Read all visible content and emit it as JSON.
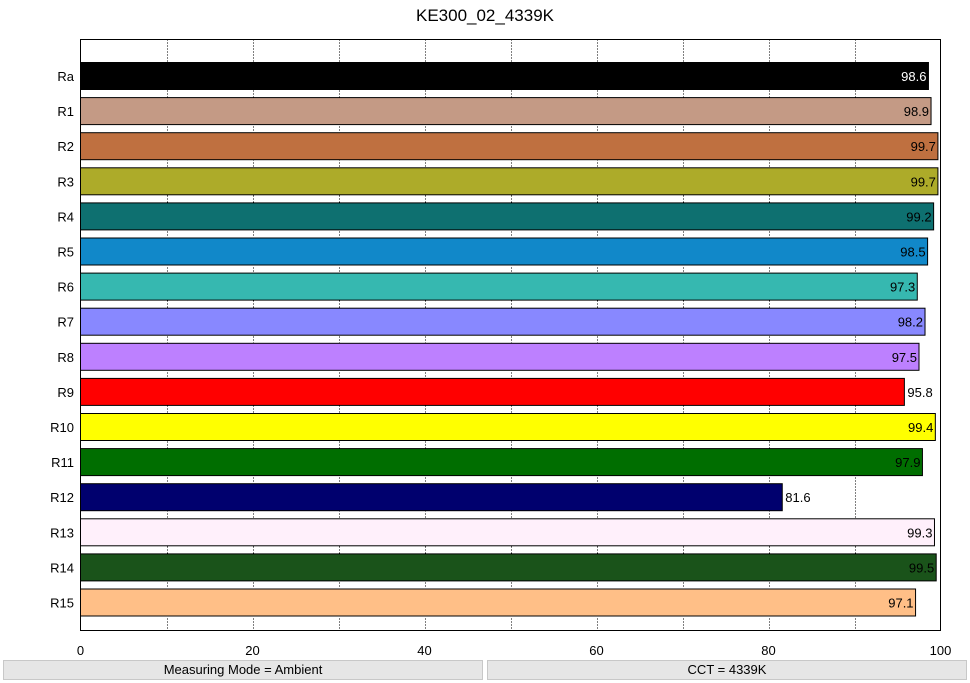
{
  "chart_data": {
    "type": "bar",
    "orientation": "horizontal",
    "title": "KE300_02_4339K",
    "categories": [
      "Ra",
      "R1",
      "R2",
      "R3",
      "R4",
      "R5",
      "R6",
      "R7",
      "R8",
      "R9",
      "R10",
      "R11",
      "R12",
      "R13",
      "R14",
      "R15"
    ],
    "values": [
      98.6,
      98.9,
      99.7,
      99.7,
      99.2,
      98.5,
      97.3,
      98.2,
      97.5,
      95.8,
      99.4,
      97.9,
      81.6,
      99.3,
      99.5,
      97.1
    ],
    "labels": [
      "98.6",
      "98.9",
      "99.7",
      "99.7",
      "99.2",
      "98.5",
      "97.3",
      "98.2",
      "97.5",
      "95.8",
      "99.4",
      "97.9",
      "81.6",
      "99.3",
      "99.5",
      "97.1"
    ],
    "colors": [
      "#000000",
      "#c49a85",
      "#bf7040",
      "#adab29",
      "#0e7070",
      "#1188c9",
      "#36b8b0",
      "#8888ff",
      "#bd80ff",
      "#ff0000",
      "#ffff00",
      "#006e00",
      "#00006e",
      "#fff0fb",
      "#1a531a",
      "#ffbf87"
    ],
    "label_colors": [
      "#ffffff",
      "#000000",
      "#000000",
      "#000000",
      "#000000",
      "#000000",
      "#000000",
      "#000000",
      "#000000",
      "#000000",
      "#000000",
      "#000000",
      "#000000",
      "#000000",
      "#000000",
      "#000000"
    ],
    "xlim": [
      0,
      100
    ],
    "xticks": [
      "0",
      "20",
      "40",
      "60",
      "80",
      "100"
    ],
    "grid": "vertical dotted",
    "xlabel": "",
    "ylabel": ""
  },
  "status": {
    "measuring_mode": "Measuring Mode = Ambient",
    "cct": "CCT = 4339K"
  }
}
